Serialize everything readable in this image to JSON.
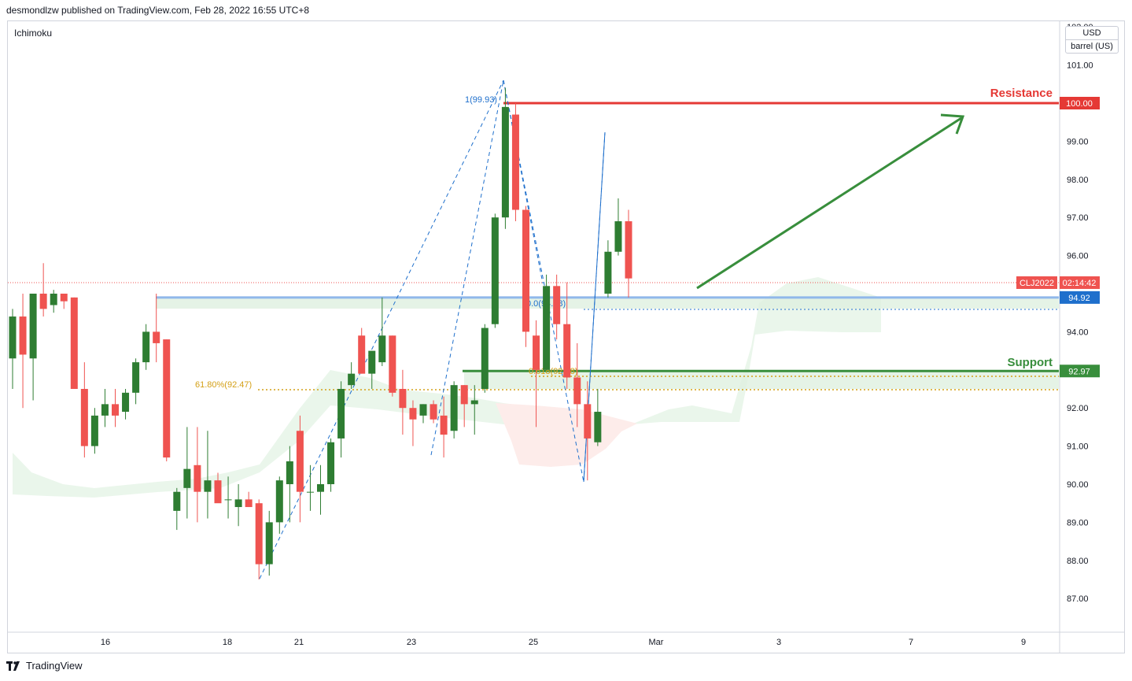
{
  "header": {
    "text": "desmondlzw published on TradingView.com, Feb 28, 2022 16:55 UTC+8"
  },
  "indicator": {
    "label": "Ichimoku"
  },
  "unit": {
    "currency": "USD",
    "measure": "barrel (US)"
  },
  "footer": {
    "brand": "TradingView",
    "logo_icon": "tradingview-logo-icon"
  },
  "colors": {
    "up": "#2e7d32",
    "down": "#ef5350",
    "resistance": "#e53935",
    "support": "#388e3c",
    "fib": "#1e6fcc",
    "fib_gold": "#d4a017",
    "cloud_green": "#e8f5e9",
    "cloud_red": "#fdecea"
  },
  "chart_data": {
    "type": "candlestick",
    "symbol": "CLJ2022",
    "countdown": "02:14:42",
    "ylim": [
      86.5,
      102.0
    ],
    "y_ticks": [
      "87.00",
      "88.00",
      "89.00",
      "90.00",
      "91.00",
      "92.00",
      "94.00",
      "96.00",
      "97.00",
      "98.00",
      "99.00",
      "101.00",
      "102.00"
    ],
    "x_ticks": [
      "16",
      "18",
      "21",
      "23",
      "25",
      "Mar",
      "3",
      "7",
      "9"
    ],
    "last_price": "94.92",
    "levels": [
      {
        "name": "Resistance",
        "value": 100.0,
        "label": "100.00"
      },
      {
        "name": "Support",
        "value": 92.97,
        "label": "92.97"
      }
    ],
    "fib_labels": [
      "1(99.93)",
      "0.0(94.58)",
      "61.80%(92.47)",
      "0.618(92.88)"
    ],
    "candles": [
      {
        "o": 93.3,
        "h": 94.6,
        "l": 92.5,
        "c": 94.4
      },
      {
        "o": 94.4,
        "h": 95.0,
        "l": 92.0,
        "c": 93.4
      },
      {
        "o": 93.3,
        "h": 95.0,
        "l": 92.2,
        "c": 95.0
      },
      {
        "o": 95.0,
        "h": 95.8,
        "l": 94.4,
        "c": 94.6
      },
      {
        "o": 94.7,
        "h": 95.1,
        "l": 94.5,
        "c": 95.0
      },
      {
        "o": 95.0,
        "h": 95.0,
        "l": 94.6,
        "c": 94.8
      },
      {
        "o": 94.9,
        "h": 94.9,
        "l": 92.5,
        "c": 92.5
      },
      {
        "o": 92.5,
        "h": 93.2,
        "l": 90.7,
        "c": 91.0
      },
      {
        "o": 91.0,
        "h": 92.0,
        "l": 90.8,
        "c": 91.8
      },
      {
        "o": 91.8,
        "h": 92.5,
        "l": 91.5,
        "c": 92.1
      },
      {
        "o": 92.1,
        "h": 92.5,
        "l": 91.5,
        "c": 91.8
      },
      {
        "o": 91.9,
        "h": 92.5,
        "l": 91.7,
        "c": 92.4
      },
      {
        "o": 92.4,
        "h": 93.3,
        "l": 92.1,
        "c": 93.2
      },
      {
        "o": 93.2,
        "h": 94.2,
        "l": 93.0,
        "c": 94.0
      },
      {
        "o": 94.0,
        "h": 95.0,
        "l": 93.2,
        "c": 93.7
      },
      {
        "o": 93.8,
        "h": 93.8,
        "l": 90.6,
        "c": 90.7
      },
      {
        "o": 89.3,
        "h": 89.9,
        "l": 88.8,
        "c": 89.8
      },
      {
        "o": 89.9,
        "h": 91.5,
        "l": 89.1,
        "c": 90.4
      },
      {
        "o": 90.5,
        "h": 91.5,
        "l": 89.0,
        "c": 89.8
      },
      {
        "o": 89.8,
        "h": 91.4,
        "l": 89.1,
        "c": 90.1
      },
      {
        "o": 90.1,
        "h": 90.3,
        "l": 89.6,
        "c": 89.5
      },
      {
        "o": 89.6,
        "h": 90.2,
        "l": 89.1,
        "c": 89.6
      },
      {
        "o": 89.4,
        "h": 90.0,
        "l": 88.9,
        "c": 89.6
      },
      {
        "o": 89.6,
        "h": 89.8,
        "l": 89.4,
        "c": 89.4
      },
      {
        "o": 89.5,
        "h": 89.6,
        "l": 87.5,
        "c": 87.9
      },
      {
        "o": 87.9,
        "h": 89.3,
        "l": 87.6,
        "c": 89.0
      },
      {
        "o": 89.0,
        "h": 90.2,
        "l": 88.7,
        "c": 90.1
      },
      {
        "o": 90.0,
        "h": 91.0,
        "l": 89.0,
        "c": 90.6
      },
      {
        "o": 91.4,
        "h": 91.8,
        "l": 89.0,
        "c": 89.8
      },
      {
        "o": 89.8,
        "h": 90.5,
        "l": 89.3,
        "c": 89.8
      },
      {
        "o": 89.8,
        "h": 90.5,
        "l": 89.2,
        "c": 90.0
      },
      {
        "o": 90.0,
        "h": 91.2,
        "l": 89.8,
        "c": 91.1
      },
      {
        "o": 91.2,
        "h": 92.7,
        "l": 90.7,
        "c": 92.5
      },
      {
        "o": 92.6,
        "h": 93.2,
        "l": 92.5,
        "c": 92.9
      },
      {
        "o": 93.9,
        "h": 94.1,
        "l": 92.9,
        "c": 92.9
      },
      {
        "o": 92.9,
        "h": 93.5,
        "l": 92.5,
        "c": 93.5
      },
      {
        "o": 93.2,
        "h": 94.9,
        "l": 93.1,
        "c": 93.9
      },
      {
        "o": 93.9,
        "h": 93.9,
        "l": 92.3,
        "c": 92.4
      },
      {
        "o": 92.5,
        "h": 93.0,
        "l": 91.3,
        "c": 92.0
      },
      {
        "o": 92.0,
        "h": 92.2,
        "l": 91.0,
        "c": 91.7
      },
      {
        "o": 91.8,
        "h": 92.1,
        "l": 91.6,
        "c": 92.1
      },
      {
        "o": 92.1,
        "h": 92.2,
        "l": 91.6,
        "c": 91.7
      },
      {
        "o": 91.8,
        "h": 92.3,
        "l": 90.7,
        "c": 91.3
      },
      {
        "o": 91.4,
        "h": 92.7,
        "l": 91.2,
        "c": 92.6
      },
      {
        "o": 92.6,
        "h": 92.6,
        "l": 91.5,
        "c": 92.1
      },
      {
        "o": 92.1,
        "h": 92.6,
        "l": 91.3,
        "c": 92.2
      },
      {
        "o": 92.5,
        "h": 94.2,
        "l": 92.4,
        "c": 94.1
      },
      {
        "o": 94.2,
        "h": 97.1,
        "l": 94.1,
        "c": 97.0
      },
      {
        "o": 97.0,
        "h": 100.4,
        "l": 96.7,
        "c": 99.9
      },
      {
        "o": 99.7,
        "h": 100.0,
        "l": 96.9,
        "c": 97.2
      },
      {
        "o": 97.2,
        "h": 97.3,
        "l": 93.6,
        "c": 94.0
      },
      {
        "o": 93.9,
        "h": 94.3,
        "l": 91.5,
        "c": 93.0
      },
      {
        "o": 93.0,
        "h": 95.5,
        "l": 93.0,
        "c": 95.2
      },
      {
        "o": 95.2,
        "h": 95.5,
        "l": 93.8,
        "c": 94.2
      },
      {
        "o": 94.2,
        "h": 95.3,
        "l": 92.5,
        "c": 92.8
      },
      {
        "o": 92.8,
        "h": 93.7,
        "l": 91.5,
        "c": 92.1
      },
      {
        "o": 92.1,
        "h": 92.7,
        "l": 90.1,
        "c": 91.2
      },
      {
        "o": 91.1,
        "h": 92.5,
        "l": 91.0,
        "c": 91.9
      },
      {
        "o": 95.0,
        "h": 96.4,
        "l": 94.9,
        "c": 96.1
      },
      {
        "o": 96.1,
        "h": 97.5,
        "l": 96.0,
        "c": 96.9
      },
      {
        "o": 96.9,
        "h": 97.2,
        "l": 94.9,
        "c": 95.4
      }
    ]
  }
}
